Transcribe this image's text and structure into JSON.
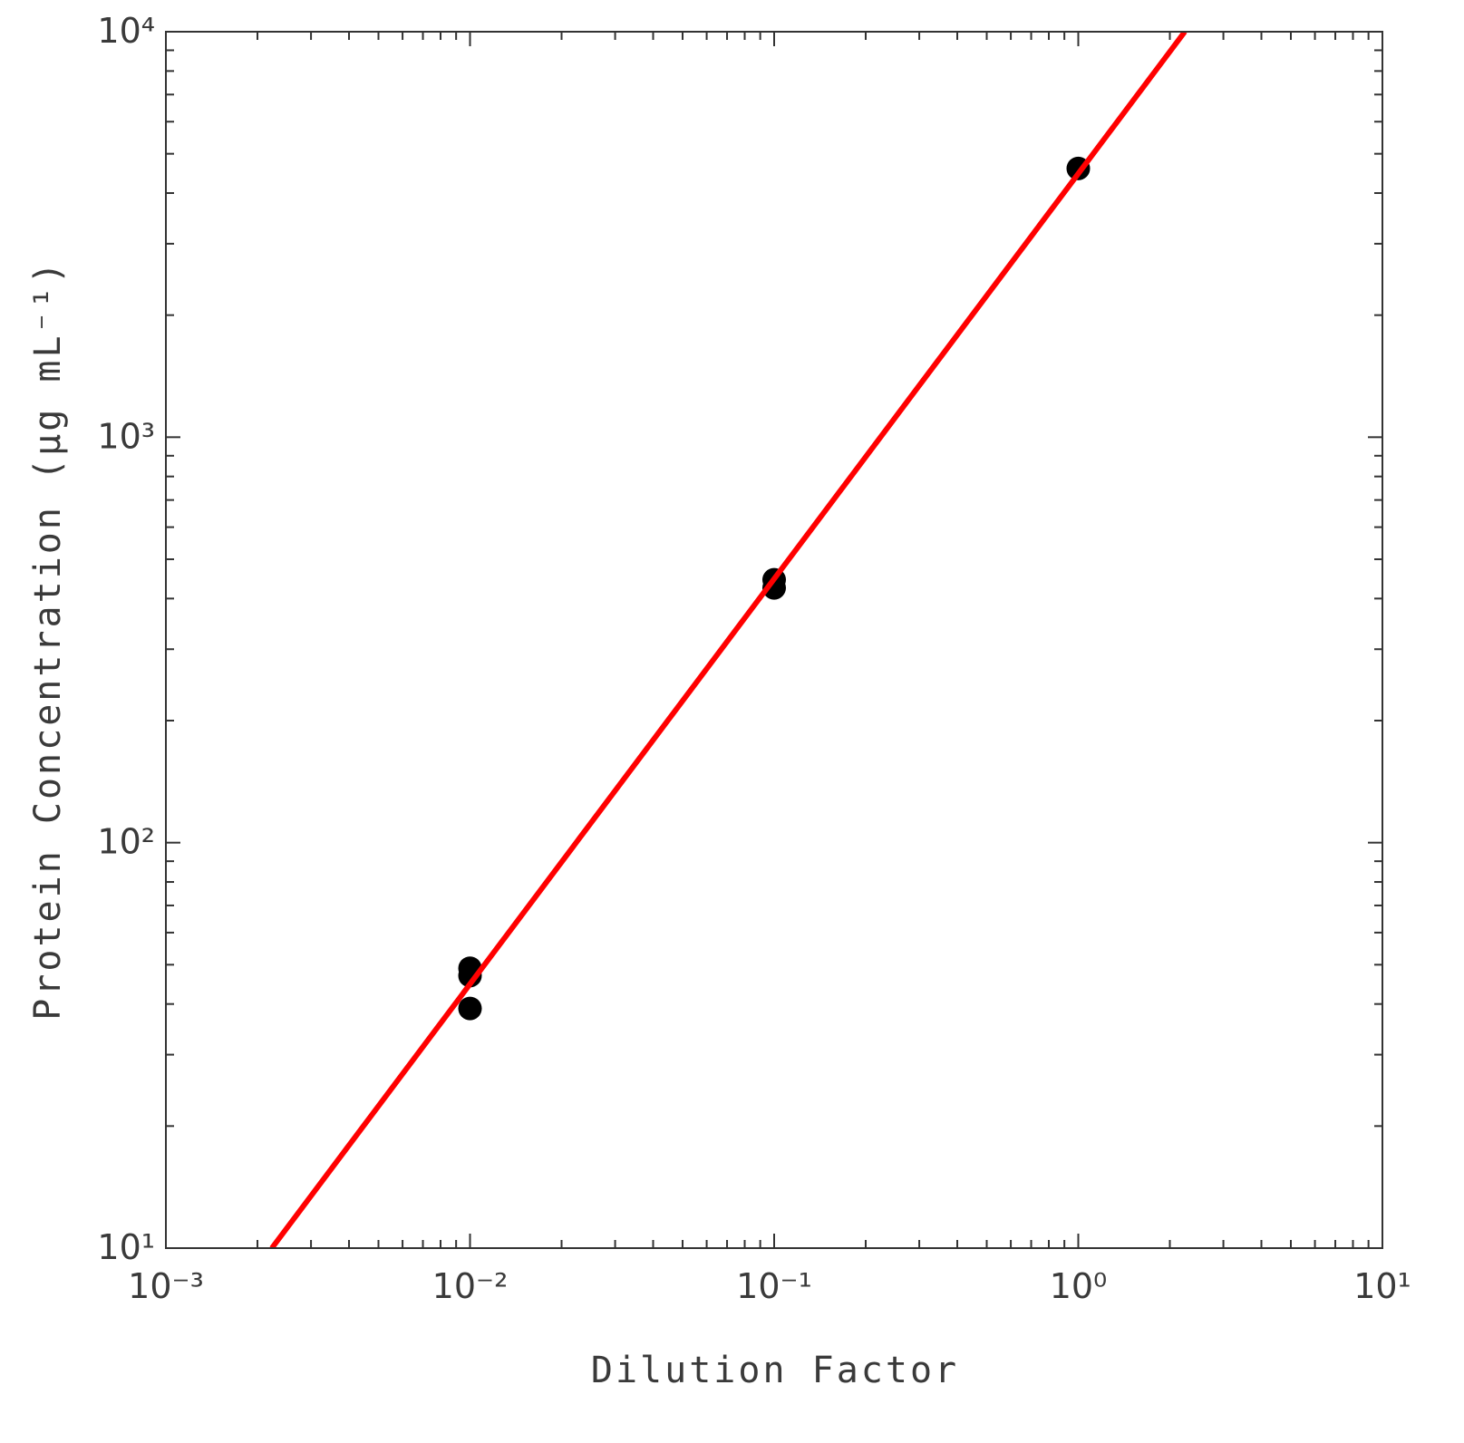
{
  "chart_data": {
    "type": "scatter",
    "xlabel": "Dilution Factor",
    "ylabel": "Protein Concentration (μg mL⁻¹)",
    "xscale": "log",
    "yscale": "log",
    "xlim": [
      0.001,
      10
    ],
    "ylim": [
      10,
      10000
    ],
    "xticks": [
      {
        "value": 0.001,
        "label": "10⁻³"
      },
      {
        "value": 0.01,
        "label": "10⁻²"
      },
      {
        "value": 0.1,
        "label": "10⁻¹"
      },
      {
        "value": 1,
        "label": "10⁰"
      },
      {
        "value": 10,
        "label": "10¹"
      }
    ],
    "yticks": [
      {
        "value": 10,
        "label": "10¹"
      },
      {
        "value": 100,
        "label": "10²"
      },
      {
        "value": 1000,
        "label": "10³"
      },
      {
        "value": 10000,
        "label": "10⁴"
      }
    ],
    "minor_ticks": true,
    "series": [
      {
        "kind": "points",
        "color": "#000000",
        "x": [
          0.01,
          0.01,
          0.01,
          0.1,
          0.1,
          1
        ],
        "values": [
          49,
          47,
          39,
          445,
          425,
          4600
        ]
      },
      {
        "kind": "line",
        "color": "#ff0000",
        "x": [
          0.00223,
          2.24
        ],
        "values": [
          10,
          10000
        ]
      }
    ]
  }
}
